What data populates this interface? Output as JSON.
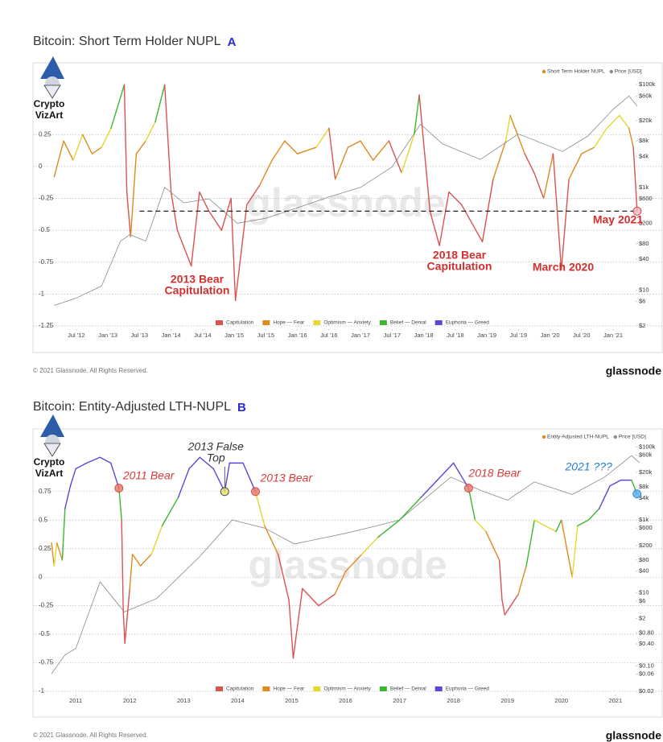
{
  "chart_data": [
    {
      "type": "line",
      "title": "Bitcoin: Short Term Holder NUPL",
      "panel_label": "A",
      "logo": [
        "Crypto",
        "VizArt"
      ],
      "watermark": "glassnode",
      "copyright": "© 2021 Glassnode. All Rights Reserved.",
      "brand": "glassnode",
      "xlim": [
        2012.12,
        2021.42
      ],
      "xticks": [
        {
          "value": 2012.5,
          "label": "Jul '12"
        },
        {
          "value": 2013,
          "label": "Jan '13"
        },
        {
          "value": 2013.5,
          "label": "Jul '13"
        },
        {
          "value": 2014,
          "label": "Jan '14"
        },
        {
          "value": 2014.5,
          "label": "Jul '14"
        },
        {
          "value": 2015,
          "label": "Jan '15"
        },
        {
          "value": 2015.5,
          "label": "Jul '15"
        },
        {
          "value": 2016,
          "label": "Jan '16"
        },
        {
          "value": 2016.5,
          "label": "Jul '16"
        },
        {
          "value": 2017,
          "label": "Jan '17"
        },
        {
          "value": 2017.5,
          "label": "Jul '17"
        },
        {
          "value": 2018,
          "label": "Jan '18"
        },
        {
          "value": 2018.5,
          "label": "Jul '18"
        },
        {
          "value": 2019,
          "label": "Jan '19"
        },
        {
          "value": 2019.5,
          "label": "Jul '19"
        },
        {
          "value": 2020,
          "label": "Jan '20"
        },
        {
          "value": 2020.5,
          "label": "Jul '20"
        },
        {
          "value": 2021,
          "label": "Jan '21"
        }
      ],
      "ylim": [
        -1.25,
        0.75
      ],
      "yticks": [
        0.25,
        0,
        -0.25,
        -0.5,
        -0.75,
        -1,
        -1.25
      ],
      "y2scale": "log",
      "y2lim": [
        2,
        186000
      ],
      "y2ticks": [
        {
          "value": 100000,
          "label": "$100k"
        },
        {
          "value": 60000,
          "label": "$60k"
        },
        {
          "value": 20000,
          "label": "$20k"
        },
        {
          "value": 8000,
          "label": "$8k"
        },
        {
          "value": 4000,
          "label": "$4k"
        },
        {
          "value": 1000,
          "label": "$1k"
        },
        {
          "value": 600,
          "label": "$600"
        },
        {
          "value": 200,
          "label": "$200"
        },
        {
          "value": 80,
          "label": "$80"
        },
        {
          "value": 40,
          "label": "$40"
        },
        {
          "value": 10,
          "label": "$10"
        },
        {
          "value": 6,
          "label": "$6"
        },
        {
          "value": 2,
          "label": "$2"
        }
      ],
      "grid": true,
      "zone_legend": [
        {
          "name": "Capitulation",
          "color": "#d9534f"
        },
        {
          "name": "Hope — Fear",
          "color": "#e08a1e"
        },
        {
          "name": "Optimism — Anxiety",
          "color": "#e6d62e"
        },
        {
          "name": "Belief — Denial",
          "color": "#3cb62f"
        },
        {
          "name": "Euphoria — Greed",
          "color": "#5b47d6"
        }
      ],
      "series": [
        {
          "name": "Short Term Holder NUPL",
          "color": "#e08a1e",
          "x": [
            2012.15,
            2012.3,
            2012.45,
            2012.6,
            2012.75,
            2012.9,
            2013.05,
            2013.26,
            2013.3,
            2013.36,
            2013.45,
            2013.6,
            2013.75,
            2013.9,
            2014.0,
            2014.1,
            2014.32,
            2014.45,
            2014.6,
            2014.8,
            2014.95,
            2015.02,
            2015.2,
            2015.4,
            2015.6,
            2015.8,
            2016.0,
            2016.3,
            2016.5,
            2016.6,
            2016.8,
            2017.0,
            2017.2,
            2017.45,
            2017.65,
            2017.85,
            2017.93,
            2018.1,
            2018.25,
            2018.4,
            2018.6,
            2018.93,
            2019.1,
            2019.3,
            2019.37,
            2019.6,
            2019.75,
            2019.9,
            2020.05,
            2020.18,
            2020.3,
            2020.5,
            2020.7,
            2020.9,
            2021.1,
            2021.25,
            2021.32,
            2021.38
          ],
          "values": [
            -0.08,
            0.2,
            0.05,
            0.25,
            0.1,
            0.15,
            0.3,
            0.64,
            -0.2,
            -0.55,
            0.1,
            0.2,
            0.35,
            0.64,
            -0.2,
            -0.5,
            -0.78,
            -0.2,
            -0.35,
            -0.5,
            -0.25,
            -1.05,
            -0.3,
            -0.15,
            0.05,
            0.2,
            0.1,
            0.15,
            0.3,
            -0.1,
            0.15,
            0.2,
            0.05,
            0.2,
            -0.05,
            0.25,
            0.56,
            -0.35,
            -0.62,
            -0.2,
            -0.3,
            -0.59,
            -0.1,
            0.2,
            0.4,
            0.1,
            -0.05,
            -0.25,
            0.1,
            -0.81,
            -0.1,
            0.1,
            0.15,
            0.3,
            0.4,
            0.3,
            0.15,
            -0.35
          ],
          "zones": [
            0,
            1,
            1,
            2,
            1,
            1,
            2,
            3,
            0,
            0,
            1,
            1,
            2,
            3,
            0,
            0,
            0,
            0,
            0,
            0,
            0,
            0,
            0,
            0,
            1,
            1,
            1,
            1,
            2,
            0,
            1,
            1,
            1,
            1,
            0,
            2,
            3,
            0,
            0,
            0,
            0,
            0,
            0,
            1,
            2,
            1,
            0,
            0,
            1,
            0,
            0,
            1,
            1,
            2,
            2,
            2,
            1,
            0
          ]
        },
        {
          "name": "Price [USD]",
          "color": "#8a8a8a",
          "axis": "y2",
          "x": [
            2012.15,
            2012.5,
            2012.9,
            2013.2,
            2013.35,
            2013.6,
            2013.9,
            2014.2,
            2014.6,
            2015.05,
            2015.5,
            2016.0,
            2016.5,
            2017.0,
            2017.5,
            2017.95,
            2018.3,
            2018.9,
            2019.5,
            2020.2,
            2020.6,
            2021.0,
            2021.25,
            2021.38
          ],
          "values": [
            5,
            7,
            12,
            90,
            120,
            90,
            1000,
            500,
            600,
            200,
            250,
            400,
            650,
            1000,
            2500,
            17000,
            7000,
            3500,
            11000,
            5000,
            10000,
            33000,
            60000,
            38000
          ]
        }
      ],
      "reference_line": {
        "value": -0.35,
        "x": [
          2013.5,
          2021.38
        ]
      },
      "annotations": [
        {
          "lines": [
            "2013 Bear",
            "Capitulation"
          ],
          "color": "#d32f2f"
        },
        {
          "lines": [
            "2018 Bear",
            "Capitulation"
          ],
          "color": "#d32f2f"
        },
        {
          "lines": [
            "March 2020"
          ],
          "color": "#d32f2f"
        },
        {
          "lines": [
            "May 2021"
          ],
          "color": "#d32f2f",
          "x": 2021.38,
          "y": -0.35,
          "marker_color": "#f2b8b8"
        }
      ]
    },
    {
      "type": "line",
      "title": "Bitcoin: Entity-Adjusted LTH-NUPL",
      "panel_label": "B",
      "logo": [
        "Crypto",
        "VizArt"
      ],
      "watermark": "glassnode",
      "copyright": "© 2021 Glassnode. All Rights Reserved.",
      "brand": "glassnode",
      "xlim": [
        2010.55,
        2021.45
      ],
      "xticks": [
        2011,
        2012,
        2013,
        2014,
        2015,
        2016,
        2017,
        2018,
        2019,
        2020,
        2021
      ],
      "ylim": [
        -1,
        1.2
      ],
      "yticks": [
        0.75,
        0.5,
        0.25,
        0,
        -0.25,
        -0.5,
        -0.75,
        -1
      ],
      "y2scale": "log",
      "y2lim": [
        0.02,
        154000
      ],
      "y2ticks": [
        {
          "value": 100000,
          "label": "$100k"
        },
        {
          "value": 60000,
          "label": "$60k"
        },
        {
          "value": 20000,
          "label": "$20k"
        },
        {
          "value": 8000,
          "label": "$8k"
        },
        {
          "value": 4000,
          "label": "$4k"
        },
        {
          "value": 1000,
          "label": "$1k"
        },
        {
          "value": 600,
          "label": "$600"
        },
        {
          "value": 200,
          "label": "$200"
        },
        {
          "value": 80,
          "label": "$80"
        },
        {
          "value": 40,
          "label": "$40"
        },
        {
          "value": 10,
          "label": "$10"
        },
        {
          "value": 6,
          "label": "$6"
        },
        {
          "value": 2,
          "label": "$2"
        },
        {
          "value": 0.8,
          "label": "$0.80"
        },
        {
          "value": 0.4,
          "label": "$0.40"
        },
        {
          "value": 0.1,
          "label": "$0.10"
        },
        {
          "value": 0.06,
          "label": "$0.06"
        },
        {
          "value": 0.02,
          "label": "$0.02"
        }
      ],
      "grid": true,
      "zone_legend": [
        {
          "name": "Capitulation",
          "color": "#d9534f"
        },
        {
          "name": "Hope — Fear",
          "color": "#e08a1e"
        },
        {
          "name": "Optimism — Anxiety",
          "color": "#e6d62e"
        },
        {
          "name": "Belief — Denial",
          "color": "#3cb62f"
        },
        {
          "name": "Euphoria — Greed",
          "color": "#5b47d6"
        }
      ],
      "series": [
        {
          "name": "Entity-Adjusted LTH-NUPL",
          "color": "#e08a1e",
          "x": [
            2010.55,
            2010.6,
            2010.65,
            2010.75,
            2010.8,
            2010.9,
            2011.0,
            2011.2,
            2011.45,
            2011.65,
            2011.8,
            2011.85,
            2011.88,
            2011.91,
            2012.0,
            2012.05,
            2012.2,
            2012.4,
            2012.6,
            2012.9,
            2013.1,
            2013.3,
            2013.55,
            2013.76,
            2013.85,
            2014.1,
            2014.33,
            2014.5,
            2014.75,
            2014.95,
            2015.03,
            2015.2,
            2015.5,
            2015.8,
            2016.0,
            2016.3,
            2016.6,
            2017.0,
            2017.4,
            2017.7,
            2018.0,
            2018.28,
            2018.4,
            2018.6,
            2018.85,
            2018.9,
            2018.95,
            2019.2,
            2019.35,
            2019.5,
            2019.7,
            2019.9,
            2020.0,
            2020.2,
            2020.3,
            2020.5,
            2020.7,
            2020.9,
            2021.1,
            2021.3,
            2021.4
          ],
          "values": [
            0.3,
            0.1,
            0.3,
            0.15,
            0.6,
            0.8,
            0.95,
            1.0,
            1.05,
            1.0,
            0.78,
            0.5,
            -0.3,
            -0.58,
            -0.1,
            0.2,
            0.1,
            0.2,
            0.45,
            0.7,
            0.95,
            1.05,
            0.95,
            0.75,
            1.0,
            1.0,
            0.75,
            0.45,
            0.2,
            -0.2,
            -0.71,
            -0.1,
            -0.25,
            -0.15,
            0.05,
            0.2,
            0.35,
            0.5,
            0.7,
            0.85,
            1.0,
            0.78,
            0.5,
            0.4,
            0.15,
            -0.2,
            -0.33,
            -0.15,
            0.1,
            0.5,
            0.45,
            0.4,
            0.5,
            0.0,
            0.45,
            0.5,
            0.6,
            0.8,
            0.85,
            0.85,
            0.73
          ],
          "zones": [
            2,
            1,
            2,
            1,
            3,
            4,
            4,
            4,
            4,
            4,
            4,
            3,
            0,
            0,
            0,
            1,
            1,
            1,
            2,
            3,
            4,
            4,
            4,
            4,
            4,
            4,
            4,
            2,
            1,
            0,
            0,
            0,
            0,
            0,
            1,
            1,
            2,
            3,
            3,
            4,
            4,
            4,
            3,
            2,
            1,
            0,
            0,
            0,
            1,
            3,
            2,
            2,
            3,
            1,
            2,
            3,
            3,
            4,
            4,
            4,
            3
          ]
        },
        {
          "name": "Price [USD]",
          "color": "#8a8a8a",
          "axis": "y2",
          "x": [
            2010.55,
            2010.8,
            2011.0,
            2011.45,
            2011.9,
            2012.5,
            2013.3,
            2013.9,
            2014.5,
            2015.05,
            2016.0,
            2016.5,
            2017.0,
            2017.95,
            2018.5,
            2019.0,
            2019.5,
            2020.2,
            2020.8,
            2021.3,
            2021.45
          ],
          "values": [
            0.06,
            0.2,
            0.3,
            20,
            3,
            7,
            100,
            1000,
            600,
            220,
            430,
            650,
            1000,
            15000,
            6500,
            3500,
            11000,
            5000,
            15000,
            58000,
            37000
          ]
        }
      ],
      "annotations": [
        {
          "lines": [
            "2011 Bear"
          ],
          "color": "#d63b3b",
          "x": 2011.8,
          "y": 0.78,
          "marker_color": "#e8756a"
        },
        {
          "lines": [
            "2013 False",
            "Top"
          ],
          "color": "#333333",
          "x": 2013.76,
          "y": 0.75,
          "marker_color": "#e6e36a"
        },
        {
          "lines": [
            "2013 Bear"
          ],
          "color": "#d63b3b",
          "x": 2014.33,
          "y": 0.75,
          "marker_color": "#e8756a"
        },
        {
          "lines": [
            "2018 Bear"
          ],
          "color": "#d63b3b",
          "x": 2018.28,
          "y": 0.78,
          "marker_color": "#e8756a"
        },
        {
          "lines": [
            "2021 ???"
          ],
          "color": "#1e7fd0",
          "x": 2021.4,
          "y": 0.73,
          "marker_color": "#5aa9ea"
        }
      ]
    }
  ]
}
